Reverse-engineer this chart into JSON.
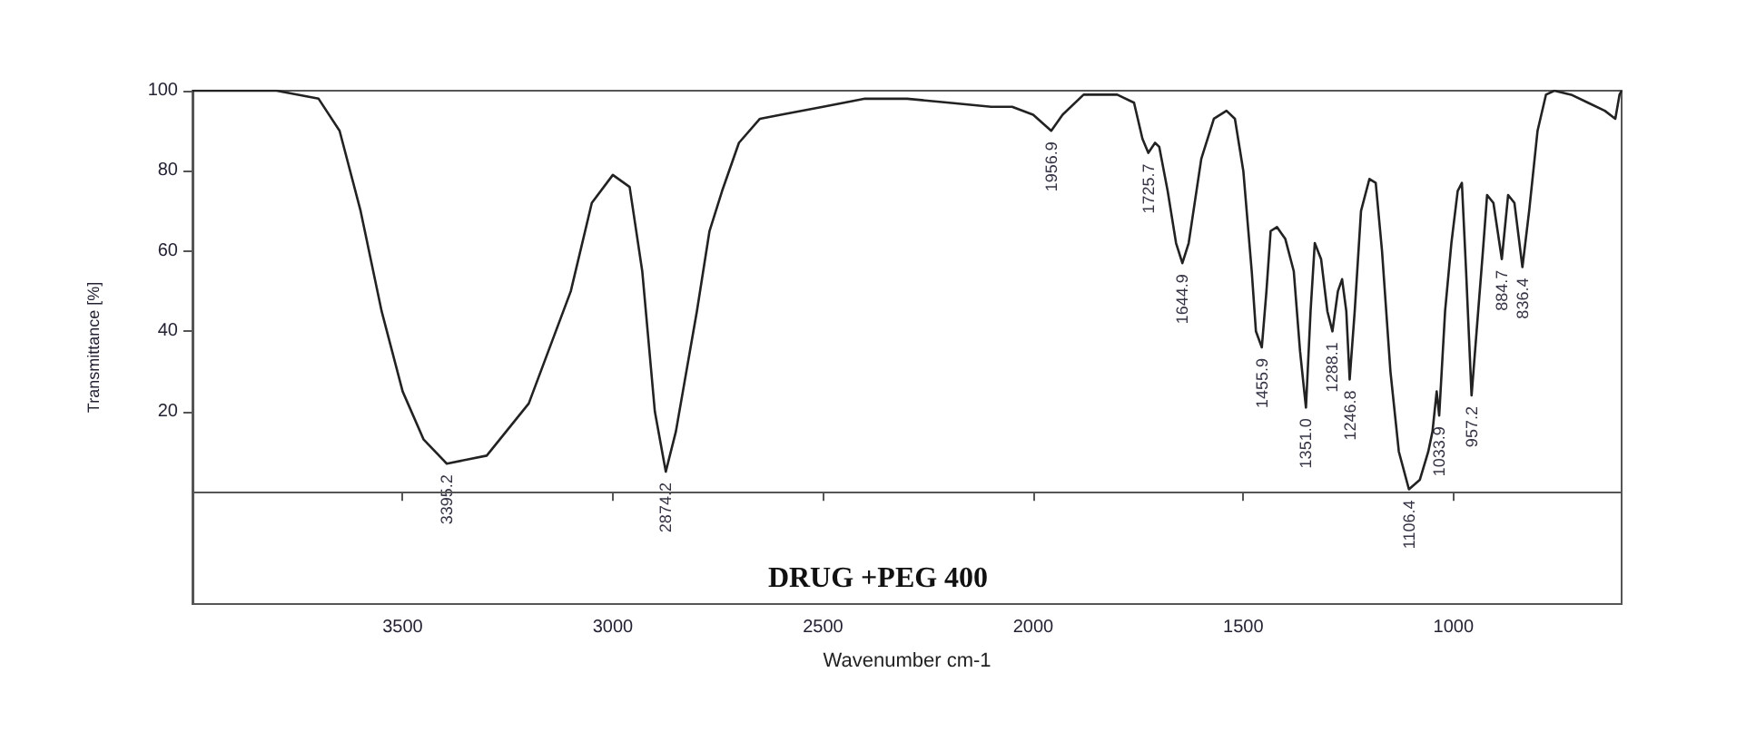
{
  "chart_data": {
    "type": "line",
    "title": "DRUG +PEG 400",
    "xlabel": "Wavenumber cm-1",
    "ylabel": "Transmittance [%]",
    "xlim": [
      4000,
      600
    ],
    "xticks": [
      3500,
      3000,
      2500,
      2000,
      1500,
      1000
    ],
    "ylim": [
      -28,
      100
    ],
    "yticks": [
      20,
      40,
      60,
      80,
      100
    ],
    "grid": false,
    "marker": "none",
    "line_style": "solid",
    "series": [
      {
        "color": "#222222",
        "x": [
          4000,
          3800,
          3700,
          3650,
          3600,
          3550,
          3500,
          3450,
          3395,
          3300,
          3200,
          3100,
          3050,
          3000,
          2960,
          2930,
          2900,
          2874,
          2850,
          2800,
          2770,
          2740,
          2700,
          2650,
          2600,
          2500,
          2400,
          2300,
          2200,
          2100,
          2050,
          2000,
          1957,
          1930,
          1880,
          1800,
          1760,
          1740,
          1726,
          1710,
          1700,
          1680,
          1660,
          1645,
          1630,
          1600,
          1570,
          1540,
          1520,
          1500,
          1480,
          1470,
          1456,
          1445,
          1435,
          1420,
          1400,
          1380,
          1365,
          1351,
          1340,
          1330,
          1315,
          1300,
          1288,
          1275,
          1265,
          1255,
          1247,
          1235,
          1220,
          1200,
          1185,
          1170,
          1150,
          1130,
          1106,
          1080,
          1060,
          1050,
          1040,
          1034,
          1020,
          1005,
          990,
          980,
          970,
          957,
          945,
          930,
          920,
          905,
          885,
          870,
          855,
          836,
          820,
          800,
          780,
          760,
          720,
          680,
          640,
          615,
          605,
          600
        ],
        "values": [
          100,
          100,
          98,
          90,
          70,
          45,
          25,
          13,
          7,
          9,
          22,
          50,
          72,
          79,
          76,
          55,
          20,
          5,
          15,
          45,
          65,
          75,
          87,
          93,
          94,
          96,
          98,
          98,
          97,
          96,
          96,
          94,
          90,
          94,
          99,
          99,
          97,
          88,
          84.5,
          87,
          86,
          75,
          62,
          57,
          62,
          83,
          93,
          95,
          93,
          80,
          55,
          40,
          36,
          50,
          65,
          66,
          63,
          55,
          35,
          21,
          45,
          62,
          58,
          45,
          40,
          50,
          53,
          45,
          28,
          45,
          70,
          78,
          77,
          60,
          30,
          10,
          0.6,
          3,
          10,
          15,
          25,
          19,
          45,
          62,
          75,
          77,
          55,
          24,
          40,
          60,
          74,
          72,
          58,
          74,
          72,
          56,
          70,
          90,
          99,
          100,
          99,
          97,
          95,
          93,
          99,
          100
        ]
      }
    ],
    "annotations": [
      {
        "text": "3395.2",
        "x": 3395.2,
        "y": 7
      },
      {
        "text": "2874.2",
        "x": 2874.2,
        "y": 5
      },
      {
        "text": "1956.9",
        "x": 1956.9,
        "y": 90
      },
      {
        "text": "1725.7",
        "x": 1725.7,
        "y": 84.5
      },
      {
        "text": "1644.9",
        "x": 1644.9,
        "y": 57
      },
      {
        "text": "1455.9",
        "x": 1455.9,
        "y": 36
      },
      {
        "text": "1351.0",
        "x": 1351.0,
        "y": 21
      },
      {
        "text": "1288.1",
        "x": 1288.1,
        "y": 40
      },
      {
        "text": "1246.8",
        "x": 1246.8,
        "y": 28
      },
      {
        "text": "1106.4",
        "x": 1106.4,
        "y": 0.6
      },
      {
        "text": "1033.9",
        "x": 1033.9,
        "y": 19
      },
      {
        "text": "957.2",
        "x": 957.2,
        "y": 24
      },
      {
        "text": "884.7",
        "x": 884.7,
        "y": 58
      },
      {
        "text": "836.4",
        "x": 836.4,
        "y": 56
      }
    ]
  }
}
